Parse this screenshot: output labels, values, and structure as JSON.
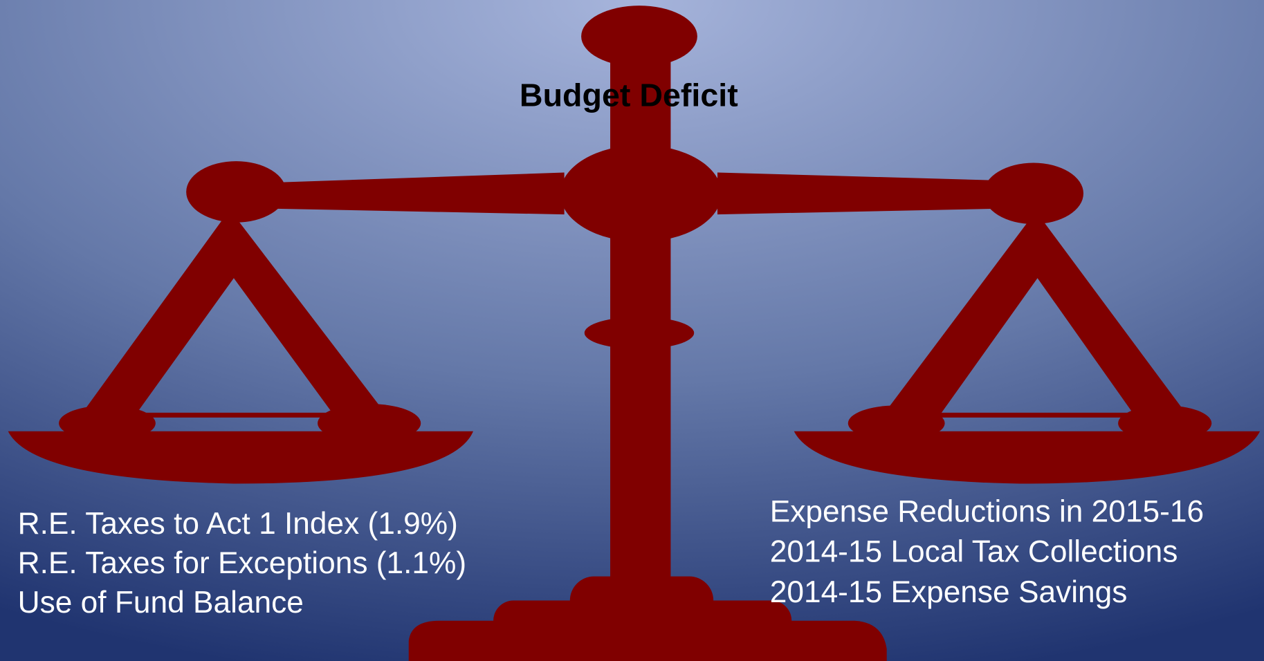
{
  "title": "Budget Deficit",
  "left_items": [
    "R.E. Taxes to Act 1 Index (1.9%)",
    "R.E. Taxes for Exceptions (1.1%)",
    "Use of Fund Balance"
  ],
  "right_items": [
    "Expense Reductions in 2015-16",
    "2014-15 Local Tax Collections",
    "2014-15 Expense Savings"
  ]
}
